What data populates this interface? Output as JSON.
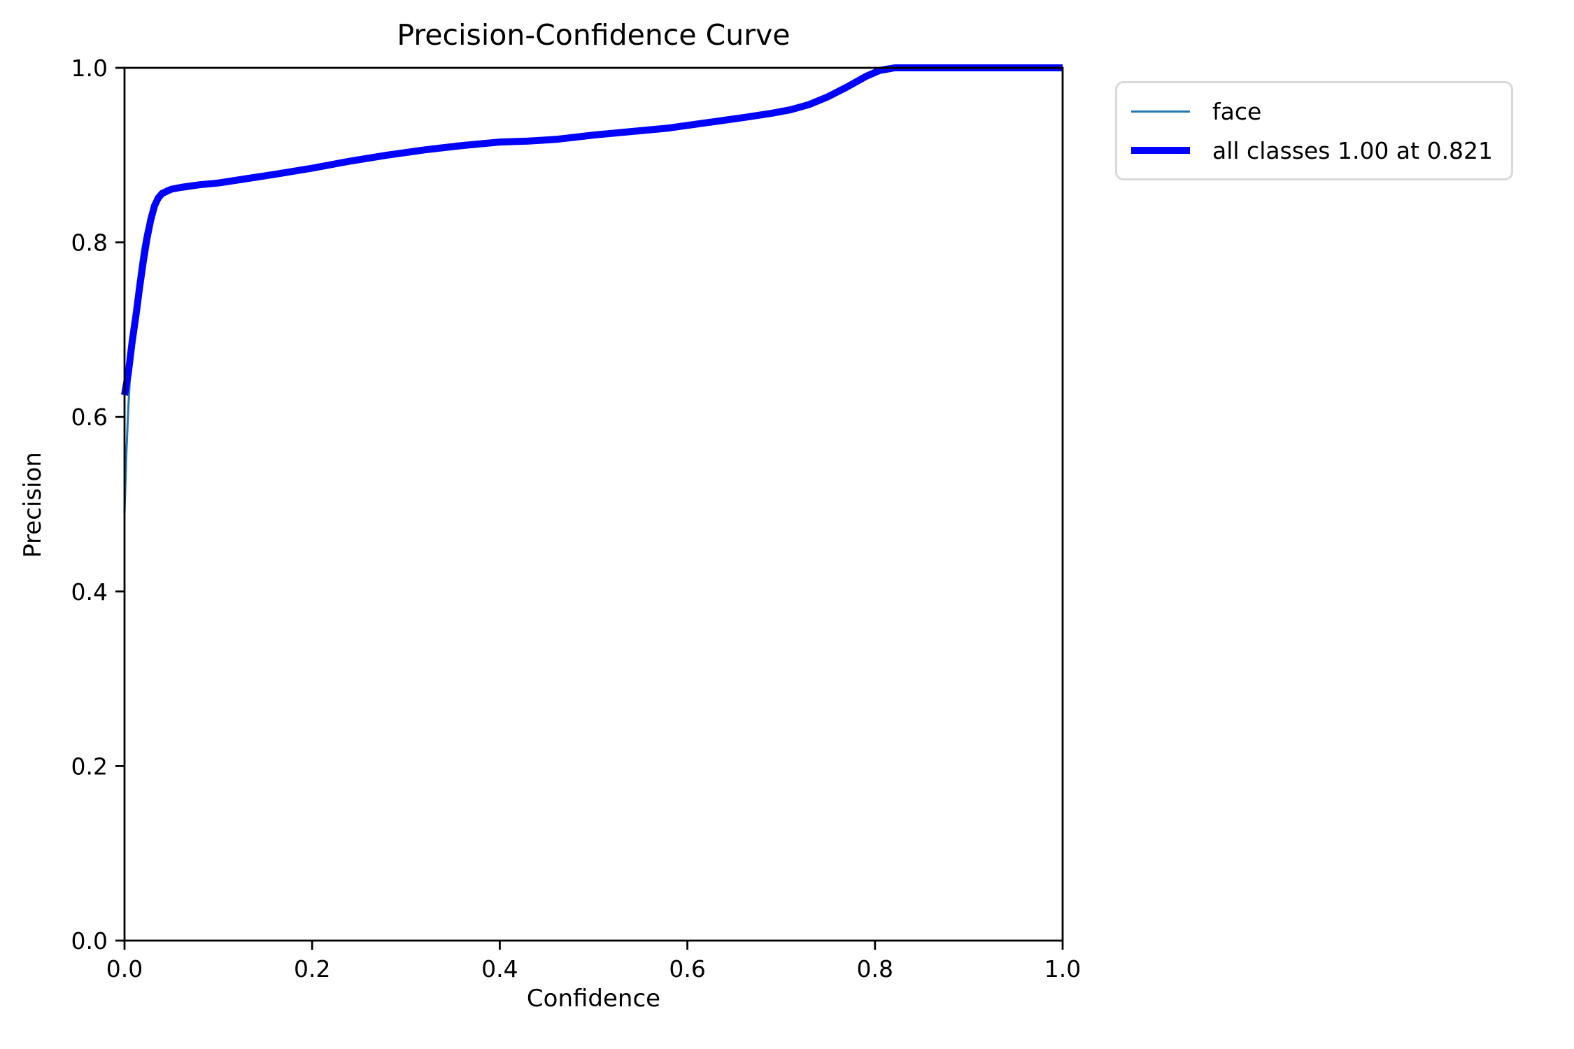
{
  "title": "Precision-Confidence Curve",
  "xlabel": "Confidence",
  "ylabel": "Precision",
  "legend": {
    "position": "outside-upper-right",
    "entries": [
      {
        "label": "face",
        "color": "#1f77b4",
        "thickness": 3
      },
      {
        "label": "all classes 1.00 at 0.821",
        "color": "#0000ff",
        "thickness": 10
      }
    ]
  },
  "chart_data": {
    "type": "line",
    "title": "Precision-Confidence Curve",
    "xlabel": "Confidence",
    "ylabel": "Precision",
    "xlim": [
      0,
      1
    ],
    "ylim": [
      0,
      1
    ],
    "grid": false,
    "legend_position": "outside-upper-right",
    "x_ticks": [
      "0.0",
      "0.2",
      "0.4",
      "0.6",
      "0.8",
      "1.0"
    ],
    "y_ticks": [
      "0.0",
      "0.2",
      "0.4",
      "0.6",
      "0.8",
      "1.0"
    ],
    "series": [
      {
        "name": "face",
        "color": "#1f77b4",
        "linewidth": 3,
        "points": [
          [
            0.0,
            0.49
          ],
          [
            0.002,
            0.56
          ],
          [
            0.004,
            0.61
          ],
          [
            0.006,
            0.65
          ],
          [
            0.008,
            0.69
          ],
          [
            0.01,
            0.715
          ],
          [
            0.013,
            0.745
          ],
          [
            0.016,
            0.77
          ],
          [
            0.019,
            0.793
          ],
          [
            0.022,
            0.81
          ],
          [
            0.026,
            0.827
          ],
          [
            0.03,
            0.841
          ],
          [
            0.034,
            0.85
          ],
          [
            0.038,
            0.856
          ],
          [
            0.045,
            0.862
          ],
          [
            0.055,
            0.864
          ],
          [
            0.07,
            0.866
          ],
          [
            0.1,
            0.868
          ],
          [
            0.13,
            0.873
          ],
          [
            0.16,
            0.878
          ],
          [
            0.2,
            0.885
          ],
          [
            0.24,
            0.893
          ],
          [
            0.28,
            0.9
          ],
          [
            0.32,
            0.906
          ],
          [
            0.36,
            0.911
          ],
          [
            0.4,
            0.915
          ],
          [
            0.43,
            0.916
          ],
          [
            0.46,
            0.918
          ],
          [
            0.5,
            0.923
          ],
          [
            0.54,
            0.927
          ],
          [
            0.58,
            0.931
          ],
          [
            0.62,
            0.937
          ],
          [
            0.66,
            0.943
          ],
          [
            0.69,
            0.948
          ],
          [
            0.705,
            0.95
          ],
          [
            0.715,
            0.951
          ],
          [
            0.725,
            0.956
          ],
          [
            0.735,
            0.959
          ],
          [
            0.745,
            0.963
          ],
          [
            0.755,
            0.969
          ],
          [
            0.765,
            0.975
          ],
          [
            0.775,
            0.982
          ],
          [
            0.785,
            0.988
          ],
          [
            0.795,
            0.993
          ],
          [
            0.805,
            0.997
          ],
          [
            0.815,
            0.999
          ],
          [
            0.821,
            1.0
          ],
          [
            0.9,
            1.0
          ],
          [
            1.0,
            1.0
          ]
        ]
      },
      {
        "name": "all classes 1.00 at 0.821",
        "color": "#0000ff",
        "linewidth": 10,
        "points": [
          [
            0.0,
            0.625
          ],
          [
            0.004,
            0.65
          ],
          [
            0.008,
            0.685
          ],
          [
            0.012,
            0.715
          ],
          [
            0.016,
            0.748
          ],
          [
            0.02,
            0.778
          ],
          [
            0.024,
            0.805
          ],
          [
            0.028,
            0.826
          ],
          [
            0.032,
            0.842
          ],
          [
            0.036,
            0.851
          ],
          [
            0.04,
            0.856
          ],
          [
            0.05,
            0.861
          ],
          [
            0.06,
            0.863
          ],
          [
            0.08,
            0.866
          ],
          [
            0.1,
            0.868
          ],
          [
            0.13,
            0.873
          ],
          [
            0.16,
            0.878
          ],
          [
            0.2,
            0.885
          ],
          [
            0.24,
            0.893
          ],
          [
            0.28,
            0.9
          ],
          [
            0.32,
            0.906
          ],
          [
            0.36,
            0.911
          ],
          [
            0.4,
            0.915
          ],
          [
            0.43,
            0.916
          ],
          [
            0.46,
            0.918
          ],
          [
            0.5,
            0.923
          ],
          [
            0.54,
            0.927
          ],
          [
            0.58,
            0.931
          ],
          [
            0.62,
            0.937
          ],
          [
            0.66,
            0.943
          ],
          [
            0.69,
            0.948
          ],
          [
            0.71,
            0.952
          ],
          [
            0.73,
            0.958
          ],
          [
            0.75,
            0.967
          ],
          [
            0.77,
            0.978
          ],
          [
            0.79,
            0.99
          ],
          [
            0.805,
            0.997
          ],
          [
            0.821,
            1.0
          ],
          [
            0.9,
            1.0
          ],
          [
            1.0,
            1.0
          ]
        ]
      }
    ]
  }
}
